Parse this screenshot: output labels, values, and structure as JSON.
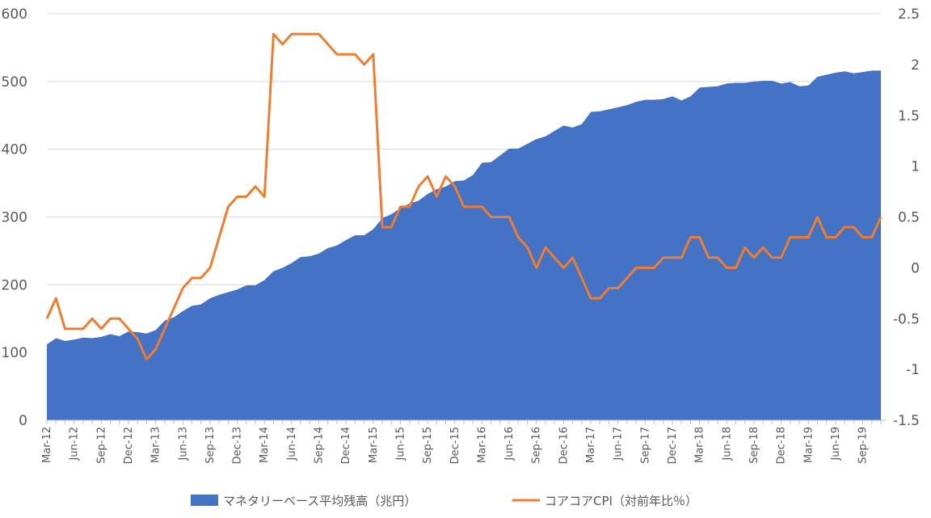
{
  "chart_data": {
    "type": "area+line",
    "x": [
      "Mar-12",
      "Apr-12",
      "May-12",
      "Jun-12",
      "Jul-12",
      "Aug-12",
      "Sep-12",
      "Oct-12",
      "Nov-12",
      "Dec-12",
      "Jan-13",
      "Feb-13",
      "Mar-13",
      "Apr-13",
      "May-13",
      "Jun-13",
      "Jul-13",
      "Aug-13",
      "Sep-13",
      "Oct-13",
      "Nov-13",
      "Dec-13",
      "Jan-14",
      "Feb-14",
      "Mar-14",
      "Apr-14",
      "May-14",
      "Jun-14",
      "Jul-14",
      "Aug-14",
      "Sep-14",
      "Oct-14",
      "Nov-14",
      "Dec-14",
      "Jan-15",
      "Feb-15",
      "Mar-15",
      "Apr-15",
      "May-15",
      "Jun-15",
      "Jul-15",
      "Aug-15",
      "Sep-15",
      "Oct-15",
      "Nov-15",
      "Dec-15",
      "Jan-16",
      "Feb-16",
      "Mar-16",
      "Apr-16",
      "May-16",
      "Jun-16",
      "Jul-16",
      "Aug-16",
      "Sep-16",
      "Oct-16",
      "Nov-16",
      "Dec-16",
      "Jan-17",
      "Feb-17",
      "Mar-17",
      "Apr-17",
      "May-17",
      "Jun-17",
      "Jul-17",
      "Aug-17",
      "Sep-17",
      "Oct-17",
      "Nov-17",
      "Dec-17",
      "Jan-18",
      "Feb-18",
      "Mar-18",
      "Apr-18",
      "May-18",
      "Jun-18",
      "Jul-18",
      "Aug-18",
      "Sep-18",
      "Oct-18",
      "Nov-18",
      "Dec-18",
      "Jan-19",
      "Feb-19",
      "Mar-19",
      "Apr-19",
      "May-19",
      "Jun-19",
      "Jul-19",
      "Aug-19",
      "Sep-19",
      "Oct-19",
      "Nov-19"
    ],
    "x_tick_labels": [
      "Mar-12",
      "Jun-12",
      "Sep-12",
      "Dec-12",
      "Mar-13",
      "Jun-13",
      "Sep-13",
      "Dec-13",
      "Mar-14",
      "Jun-14",
      "Sep-14",
      "Dec-14",
      "Mar-15",
      "Jun-15",
      "Sep-15",
      "Dec-15",
      "Mar-16",
      "Jun-16",
      "Sep-16",
      "Dec-16",
      "Mar-17",
      "Jun-17",
      "Sep-17",
      "Dec-17",
      "Mar-18",
      "Jun-18",
      "Sep-18",
      "Dec-18",
      "Mar-19",
      "Jun-19",
      "Sep-19"
    ],
    "series": [
      {
        "name": "マネタリーベース平均残高（兆円）",
        "type": "area",
        "axis": "left",
        "color": "#4472C4",
        "values": [
          112,
          121,
          117,
          119,
          122,
          121,
          123,
          127,
          124,
          131,
          130,
          128,
          133,
          147,
          152,
          161,
          169,
          171,
          180,
          185,
          189,
          193,
          199,
          199,
          207,
          220,
          225,
          232,
          241,
          242,
          246,
          254,
          258,
          266,
          273,
          273,
          282,
          298,
          304,
          313,
          320,
          324,
          334,
          341,
          345,
          353,
          354,
          362,
          380,
          381,
          391,
          401,
          401,
          408,
          415,
          419,
          427,
          435,
          432,
          437,
          455,
          456,
          459,
          462,
          465,
          470,
          473,
          473,
          474,
          478,
          472,
          478,
          491,
          492,
          493,
          497,
          498,
          498,
          500,
          501,
          501,
          497,
          499,
          493,
          494,
          507,
          510,
          513,
          515,
          512,
          514,
          516,
          516
        ]
      },
      {
        "name": "コアコアCPI（対前年比％）",
        "type": "line",
        "axis": "right",
        "color": "#ED7D31",
        "values": [
          -0.5,
          -0.3,
          -0.6,
          -0.6,
          -0.6,
          -0.5,
          -0.6,
          -0.5,
          -0.5,
          -0.6,
          -0.7,
          -0.9,
          -0.8,
          -0.6,
          -0.4,
          -0.2,
          -0.1,
          -0.1,
          0.0,
          0.3,
          0.6,
          0.7,
          0.7,
          0.8,
          0.7,
          2.3,
          2.2,
          2.3,
          2.3,
          2.3,
          2.3,
          2.2,
          2.1,
          2.1,
          2.1,
          2.0,
          2.1,
          0.4,
          0.4,
          0.6,
          0.6,
          0.8,
          0.9,
          0.7,
          0.9,
          0.8,
          0.6,
          0.6,
          0.6,
          0.5,
          0.5,
          0.5,
          0.3,
          0.2,
          0.0,
          0.2,
          0.1,
          0.0,
          0.1,
          -0.1,
          -0.3,
          -0.3,
          -0.2,
          -0.2,
          -0.1,
          0.0,
          0.0,
          0.0,
          0.1,
          0.1,
          0.1,
          0.3,
          0.3,
          0.1,
          0.1,
          0.0,
          0.0,
          0.2,
          0.1,
          0.2,
          0.1,
          0.1,
          0.3,
          0.3,
          0.3,
          0.5,
          0.3,
          0.3,
          0.4,
          0.4,
          0.3,
          0.3,
          0.5
        ]
      }
    ],
    "y_left": {
      "min": 0,
      "max": 600,
      "ticks": [
        "0",
        "100",
        "200",
        "300",
        "400",
        "500",
        "600"
      ]
    },
    "y_right": {
      "min": -1.5,
      "max": 2.5,
      "ticks": [
        "-1.5",
        "-1",
        "-0.5",
        "0",
        "0.5",
        "1",
        "1.5",
        "2",
        "2.5"
      ]
    },
    "grid": "horizontal",
    "legend": "bottom",
    "title": ""
  }
}
